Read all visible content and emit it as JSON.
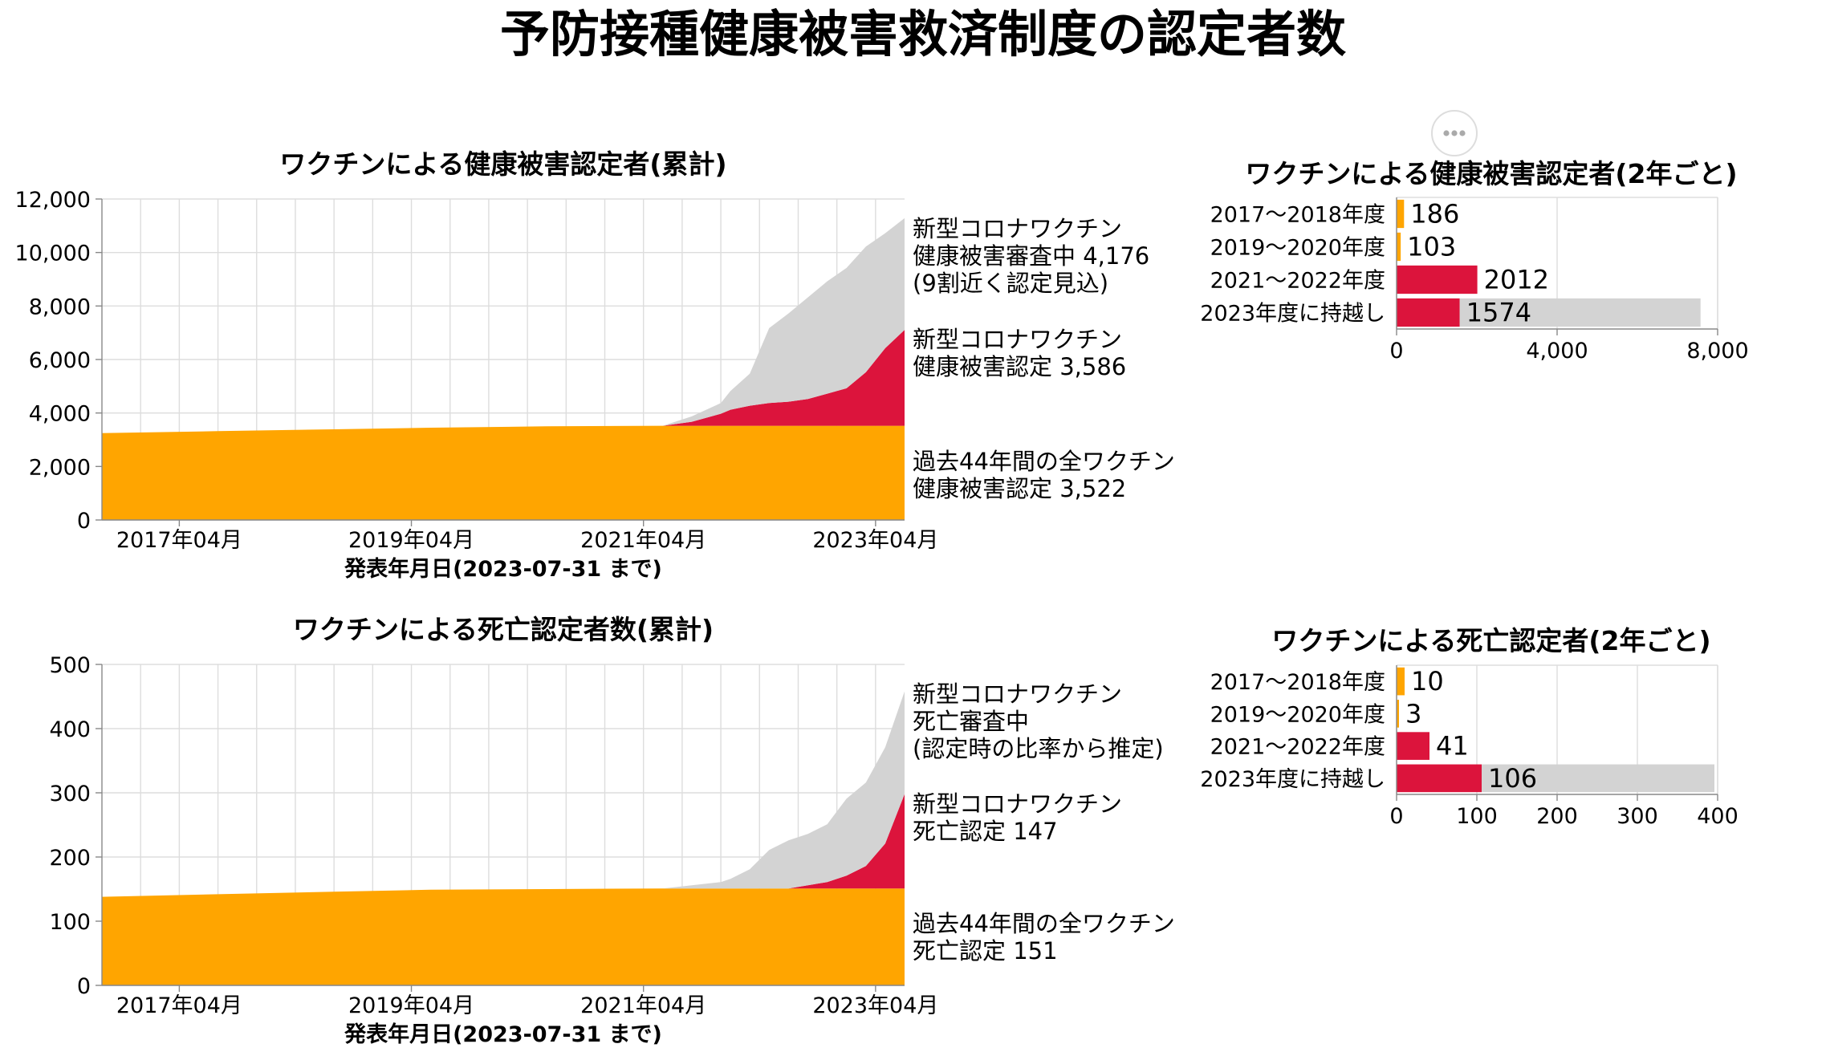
{
  "page": {
    "title": "予防接種健康被害救済制度の認定者数",
    "menu_icon": "ellipsis-icon"
  },
  "colors": {
    "baseline": "#FFA500",
    "covid_certified": "#DC143C",
    "under_review": "#D3D3D3"
  },
  "chart_data": [
    {
      "id": "health-cumulative",
      "type": "area",
      "title": "ワクチンによる健康被害認定者(累計)",
      "xlabel": "発表年月日(2023-07-31 まで)",
      "ylabel": "",
      "ylim": [
        0,
        12000
      ],
      "yticks": [
        0,
        2000,
        4000,
        6000,
        8000,
        10000,
        12000
      ],
      "ytick_labels": [
        "0",
        "2,000",
        "4,000",
        "6,000",
        "8,000",
        "10,000",
        "12,000"
      ],
      "xlim": [
        "2016-08",
        "2023-07"
      ],
      "xticks": [
        "2017-04",
        "2019-04",
        "2021-04",
        "2023-04"
      ],
      "xtick_labels": [
        "2017年04月",
        "2019年04月",
        "2021年04月",
        "2023年04月"
      ],
      "x": [
        "2016-08",
        "2017-08",
        "2018-08",
        "2019-06",
        "2020-06",
        "2021-06",
        "2021-09",
        "2021-12",
        "2022-01",
        "2022-03",
        "2022-05",
        "2022-07",
        "2022-09",
        "2022-11",
        "2023-01",
        "2023-03",
        "2023-05",
        "2023-07"
      ],
      "series": [
        {
          "name": "過去44年間の全ワクチン健康被害認定",
          "values": [
            3250,
            3320,
            3390,
            3450,
            3500,
            3522,
            3522,
            3522,
            3522,
            3522,
            3522,
            3522,
            3522,
            3522,
            3522,
            3522,
            3522,
            3522
          ]
        },
        {
          "name": "新型コロナワクチン健康被害認定",
          "values": [
            0,
            0,
            0,
            0,
            0,
            0,
            150,
            450,
            600,
            750,
            850,
            900,
            1000,
            1200,
            1400,
            2000,
            2900,
            3586
          ]
        },
        {
          "name": "新型コロナワクチン健康被害審査中",
          "values": [
            0,
            0,
            0,
            0,
            0,
            0,
            200,
            400,
            700,
            1200,
            2800,
            3300,
            3800,
            4200,
            4500,
            4700,
            4300,
            4176
          ]
        }
      ],
      "annotations": [
        {
          "lines": [
            "新型コロナワクチン",
            "健康被害審査中 4,176",
            "(9割近く認定見込)"
          ]
        },
        {
          "lines": [
            "新型コロナワクチン",
            "健康被害認定 3,586"
          ]
        },
        {
          "lines": [
            "過去44年間の全ワクチン",
            "健康被害認定 3,522"
          ]
        }
      ]
    },
    {
      "id": "health-biennial",
      "type": "bar",
      "title": "ワクチンによる健康被害認定者(2年ごと)",
      "categories": [
        "2017～2018年度",
        "2019～2020年度",
        "2021～2022年度",
        "2023年度に持越し"
      ],
      "values": [
        186,
        103,
        2012,
        1574
      ],
      "pending": [
        0,
        0,
        0,
        6000
      ],
      "value_labels": [
        "186",
        "103",
        "2012",
        "1574"
      ],
      "xlim": [
        0,
        8000
      ],
      "xticks": [
        0,
        4000,
        8000
      ],
      "xtick_labels": [
        "0",
        "4,000",
        "8,000"
      ]
    },
    {
      "id": "death-cumulative",
      "type": "area",
      "title": "ワクチンによる死亡認定者数(累計)",
      "xlabel": "発表年月日(2023-07-31 まで)",
      "ylabel": "",
      "ylim": [
        0,
        500
      ],
      "yticks": [
        0,
        100,
        200,
        300,
        400,
        500
      ],
      "ytick_labels": [
        "0",
        "100",
        "200",
        "300",
        "400",
        "500"
      ],
      "xlim": [
        "2016-08",
        "2023-07"
      ],
      "xticks": [
        "2017-04",
        "2019-04",
        "2021-04",
        "2023-04"
      ],
      "xtick_labels": [
        "2017年04月",
        "2019年04月",
        "2021年04月",
        "2023年04月"
      ],
      "x": [
        "2016-08",
        "2017-08",
        "2018-08",
        "2019-06",
        "2020-06",
        "2021-06",
        "2021-09",
        "2021-12",
        "2022-01",
        "2022-03",
        "2022-05",
        "2022-07",
        "2022-09",
        "2022-11",
        "2023-01",
        "2023-03",
        "2023-05",
        "2023-07"
      ],
      "series": [
        {
          "name": "過去44年間の全ワクチン死亡認定",
          "values": [
            138,
            142,
            146,
            149,
            150,
            151,
            151,
            151,
            151,
            151,
            151,
            151,
            151,
            151,
            151,
            151,
            151,
            151
          ]
        },
        {
          "name": "新型コロナワクチン死亡認定",
          "values": [
            0,
            0,
            0,
            0,
            0,
            0,
            0,
            0,
            0,
            0,
            0,
            0,
            5,
            10,
            20,
            35,
            70,
            147
          ]
        },
        {
          "name": "新型コロナワクチン死亡審査中",
          "values": [
            0,
            0,
            0,
            0,
            0,
            0,
            5,
            10,
            15,
            30,
            60,
            75,
            80,
            90,
            120,
            130,
            150,
            160
          ]
        }
      ],
      "annotations": [
        {
          "lines": [
            "新型コロナワクチン",
            "死亡審査中",
            "(認定時の比率から推定)"
          ]
        },
        {
          "lines": [
            "新型コロナワクチン",
            "死亡認定 147"
          ]
        },
        {
          "lines": [
            "過去44年間の全ワクチン",
            "死亡認定 151"
          ]
        }
      ]
    },
    {
      "id": "death-biennial",
      "type": "bar",
      "title": "ワクチンによる死亡認定者(2年ごと)",
      "categories": [
        "2017～2018年度",
        "2019～2020年度",
        "2021～2022年度",
        "2023年度に持越し"
      ],
      "values": [
        10,
        3,
        41,
        106
      ],
      "pending": [
        0,
        0,
        0,
        290
      ],
      "value_labels": [
        "10",
        "3",
        "41",
        "106"
      ],
      "xlim": [
        0,
        400
      ],
      "xticks": [
        0,
        100,
        200,
        300,
        400
      ],
      "xtick_labels": [
        "0",
        "100",
        "200",
        "300",
        "400"
      ]
    }
  ]
}
